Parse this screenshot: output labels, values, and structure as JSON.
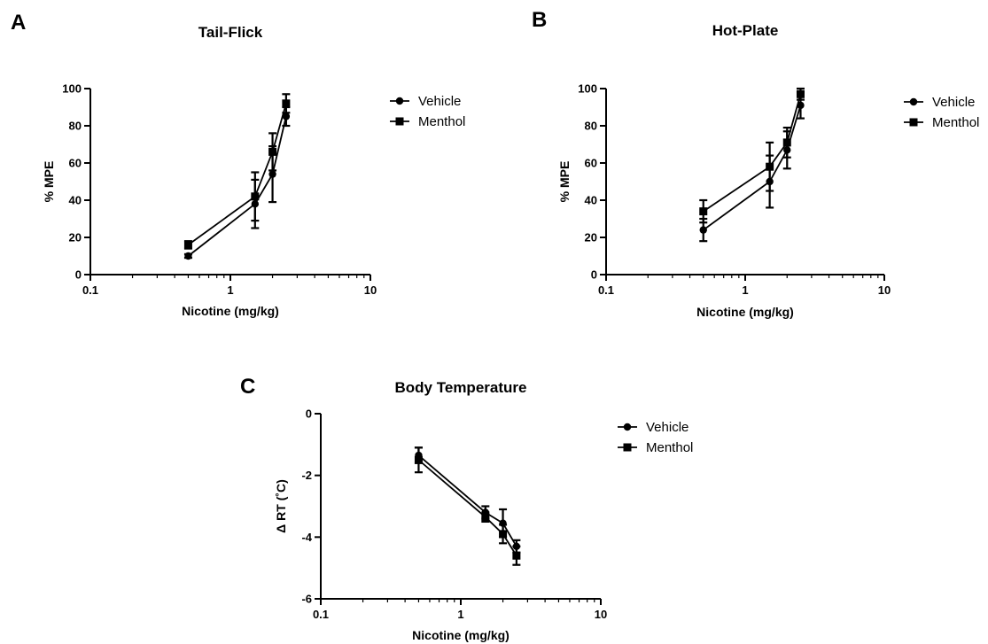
{
  "figure": {
    "panels": [
      "A",
      "B",
      "C"
    ]
  },
  "chart_data": [
    {
      "panel": "A",
      "type": "line",
      "title": "Tail-Flick",
      "xlabel": "Nicotine (mg/kg)",
      "ylabel": "% MPE",
      "x_scale": "log",
      "xlim": [
        0.1,
        10
      ],
      "ylim": [
        0,
        100
      ],
      "x_ticks": [
        0.1,
        1,
        10
      ],
      "x_tick_labels": [
        "0.1",
        "1",
        "10"
      ],
      "y_ticks": [
        0,
        20,
        40,
        60,
        80,
        100
      ],
      "y_tick_labels": [
        "0",
        "20",
        "40",
        "60",
        "80",
        "100"
      ],
      "grid": false,
      "legend_position": "top-right",
      "series": [
        {
          "name": "Vehicle",
          "marker": "circle",
          "x": [
            0.5,
            1.5,
            2,
            2.5
          ],
          "y": [
            10,
            38,
            54,
            85
          ],
          "error": [
            1,
            13,
            15,
            5
          ]
        },
        {
          "name": "Menthol",
          "marker": "square",
          "x": [
            0.5,
            1.5,
            2,
            2.5
          ],
          "y": [
            16,
            42,
            66,
            92
          ],
          "error": [
            2,
            13,
            10,
            5
          ]
        }
      ]
    },
    {
      "panel": "B",
      "type": "line",
      "title": "Hot-Plate",
      "xlabel": "Nicotine (mg/kg)",
      "ylabel": "% MPE",
      "x_scale": "log",
      "xlim": [
        0.1,
        10
      ],
      "ylim": [
        0,
        100
      ],
      "x_ticks": [
        0.1,
        1,
        10
      ],
      "x_tick_labels": [
        "0.1",
        "1",
        "10"
      ],
      "y_ticks": [
        0,
        20,
        40,
        60,
        80,
        100
      ],
      "y_tick_labels": [
        "0",
        "20",
        "40",
        "60",
        "80",
        "100"
      ],
      "grid": false,
      "legend_position": "top-right",
      "series": [
        {
          "name": "Vehicle",
          "marker": "circle",
          "x": [
            0.5,
            1.5,
            2,
            2.5
          ],
          "y": [
            24,
            50,
            67,
            91
          ],
          "error": [
            6,
            14,
            10,
            7
          ]
        },
        {
          "name": "Menthol",
          "marker": "square",
          "x": [
            0.5,
            1.5,
            2,
            2.5
          ],
          "y": [
            34,
            58,
            71,
            97
          ],
          "error": [
            6,
            13,
            8,
            3
          ]
        }
      ]
    },
    {
      "panel": "C",
      "type": "line",
      "title": "Body Temperature",
      "xlabel": "Nicotine (mg/kg)",
      "ylabel": "Δ RT (˚C)",
      "x_scale": "log",
      "xlim": [
        0.1,
        10
      ],
      "ylim": [
        -6,
        0
      ],
      "x_ticks": [
        0.1,
        1,
        10
      ],
      "x_tick_labels": [
        "0.1",
        "1",
        "10"
      ],
      "y_ticks": [
        0,
        -2,
        -4,
        -6
      ],
      "y_tick_labels": [
        "0",
        "-2",
        "-4",
        "-6"
      ],
      "grid": false,
      "legend_position": "top-right",
      "series": [
        {
          "name": "Vehicle",
          "marker": "circle",
          "x": [
            0.5,
            1.5,
            2,
            2.5
          ],
          "y": [
            -1.35,
            -3.2,
            -3.55,
            -4.3
          ],
          "error": [
            0.25,
            0.2,
            0.45,
            0.2
          ]
        },
        {
          "name": "Menthol",
          "marker": "square",
          "x": [
            0.5,
            1.5,
            2,
            2.5
          ],
          "y": [
            -1.5,
            -3.35,
            -3.9,
            -4.6
          ],
          "error": [
            0.4,
            0.15,
            0.3,
            0.3
          ]
        }
      ]
    }
  ]
}
